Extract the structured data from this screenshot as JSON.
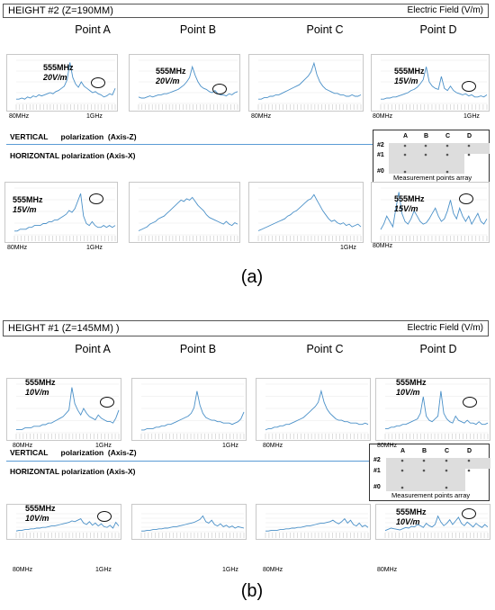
{
  "panels": [
    {
      "caption": "(a)",
      "header_left": "HEIGHT #2   (Z=190MM)",
      "header_right": "Electric Field (V/m)",
      "points": [
        "Point A",
        "Point B",
        "Point C",
        "Point D"
      ],
      "vertical_label": "VERTICAL      polarization  (Axis-Z)",
      "horizontal_label": "HORIZONTAL polarization  (Axis-X)",
      "array": {
        "cols": [
          "A",
          "B",
          "C",
          "D"
        ],
        "rows": [
          "#2",
          "#1",
          "#0"
        ],
        "caption": "Measurement points array"
      },
      "x_start": "80MHz",
      "x_end": "1GHz"
    },
    {
      "caption": "(b)",
      "header_left": "HEIGHT #1   (Z=145MM) )",
      "header_right": "Electric Field (V/m)",
      "points": [
        "Point A",
        "Point B",
        "Point C",
        "Point D"
      ],
      "vertical_label": "VERTICAL      polarization  (Axis-Z)",
      "horizontal_label": "HORIZONTAL polarization  (Axis-X)",
      "array": {
        "cols": [
          "A",
          "B",
          "C",
          "D"
        ],
        "rows": [
          "#2",
          "#1",
          "#0"
        ],
        "caption": "Measurement points array"
      },
      "x_start": "80MHz",
      "x_end": "1GHz"
    }
  ],
  "chart_data": [
    {
      "type": "line",
      "panel": "(a)",
      "polarization": "VERTICAL",
      "point": "Point A",
      "annotation_freq": "555MHz",
      "annotation_value": "20V/m",
      "x_range": [
        "80MHz",
        "1GHz"
      ],
      "ylim": [
        0,
        40
      ],
      "values": [
        4,
        4,
        5,
        4,
        6,
        5,
        7,
        6,
        8,
        7,
        8,
        9,
        10,
        9,
        11,
        12,
        14,
        16,
        22,
        38,
        24,
        18,
        15,
        20,
        16,
        14,
        12,
        10,
        11,
        9,
        8,
        6,
        7,
        9,
        8,
        14
      ]
    },
    {
      "type": "line",
      "panel": "(a)",
      "polarization": "VERTICAL",
      "point": "Point B",
      "annotation_freq": "555MHz",
      "annotation_value": "20V/m",
      "x_range": [
        "80MHz",
        "1GHz"
      ],
      "ylim": [
        0,
        40
      ],
      "values": [
        6,
        5,
        5,
        6,
        7,
        6,
        7,
        8,
        8,
        9,
        9,
        10,
        11,
        12,
        13,
        15,
        17,
        20,
        24,
        34,
        26,
        20,
        16,
        14,
        13,
        11,
        10,
        12,
        9,
        8,
        8,
        7,
        9,
        8,
        10,
        11
      ]
    },
    {
      "type": "line",
      "panel": "(a)",
      "polarization": "VERTICAL",
      "point": "Point C",
      "x_range": [
        "80MHz",
        "1GHz"
      ],
      "ylim": [
        0,
        30
      ],
      "values": [
        3,
        3,
        4,
        4,
        5,
        5,
        6,
        6,
        7,
        8,
        9,
        10,
        11,
        12,
        13,
        15,
        17,
        19,
        22,
        28,
        20,
        15,
        12,
        10,
        9,
        8,
        7,
        7,
        6,
        6,
        5,
        5,
        6,
        5,
        5,
        6
      ]
    },
    {
      "type": "line",
      "panel": "(a)",
      "polarization": "VERTICAL",
      "point": "Point D",
      "annotation_freq": "555MHz",
      "annotation_value": "15V/m",
      "x_range": [
        "80MHz",
        "1GHz"
      ],
      "ylim": [
        0,
        40
      ],
      "values": [
        4,
        4,
        5,
        5,
        6,
        6,
        7,
        8,
        9,
        10,
        12,
        13,
        15,
        18,
        22,
        34,
        20,
        16,
        14,
        13,
        25,
        14,
        12,
        16,
        12,
        10,
        9,
        8,
        9,
        7,
        8,
        6,
        6,
        7,
        6,
        8
      ]
    },
    {
      "type": "line",
      "panel": "(a)",
      "polarization": "HORIZONTAL",
      "point": "Point A",
      "annotation_freq": "555MHz",
      "annotation_value": "15V/m",
      "x_range": [
        "80MHz",
        "1GHz"
      ],
      "ylim": [
        0,
        25
      ],
      "values": [
        2,
        2,
        3,
        3,
        3,
        4,
        4,
        5,
        5,
        5,
        6,
        6,
        7,
        7,
        8,
        8,
        9,
        10,
        11,
        13,
        12,
        14,
        18,
        22,
        10,
        6,
        5,
        7,
        5,
        4,
        4,
        5,
        4,
        5,
        4,
        5
      ]
    },
    {
      "type": "line",
      "panel": "(a)",
      "polarization": "HORIZONTAL",
      "point": "Point B",
      "x_range": [
        "80MHz",
        "1GHz"
      ],
      "ylim": [
        0,
        35
      ],
      "values": [
        3,
        4,
        5,
        6,
        8,
        9,
        10,
        12,
        13,
        14,
        16,
        18,
        20,
        22,
        24,
        26,
        25,
        27,
        26,
        28,
        25,
        22,
        20,
        18,
        15,
        13,
        12,
        11,
        10,
        9,
        8,
        10,
        8,
        7,
        9,
        8
      ]
    },
    {
      "type": "line",
      "panel": "(a)",
      "polarization": "HORIZONTAL",
      "point": "Point C",
      "x_range": [
        "80MHz",
        "1GHz"
      ],
      "ylim": [
        0,
        35
      ],
      "values": [
        3,
        4,
        5,
        6,
        7,
        8,
        9,
        10,
        11,
        12,
        14,
        15,
        17,
        18,
        20,
        22,
        24,
        26,
        27,
        30,
        26,
        22,
        18,
        15,
        12,
        10,
        11,
        9,
        8,
        9,
        7,
        8,
        6,
        7,
        8,
        6
      ]
    },
    {
      "type": "line",
      "panel": "(a)",
      "polarization": "HORIZONTAL",
      "point": "Point D",
      "annotation_freq": "555MHz",
      "annotation_value": "15V/m",
      "x_range": [
        "80MHz",
        "1GHz"
      ],
      "ylim": [
        0,
        35
      ],
      "values": [
        4,
        8,
        14,
        10,
        6,
        20,
        32,
        16,
        10,
        8,
        12,
        18,
        14,
        10,
        8,
        9,
        12,
        16,
        20,
        14,
        10,
        12,
        18,
        26,
        16,
        12,
        20,
        14,
        10,
        14,
        8,
        12,
        16,
        10,
        8,
        12
      ]
    },
    {
      "type": "line",
      "panel": "(b)",
      "polarization": "VERTICAL",
      "point": "Point A",
      "annotation_freq": "555MHz",
      "annotation_value": "10V/m",
      "x_range": [
        "80MHz",
        "1GHz"
      ],
      "ylim": [
        0,
        30
      ],
      "values": [
        2,
        2,
        2,
        3,
        3,
        3,
        4,
        4,
        4,
        5,
        5,
        6,
        6,
        7,
        8,
        9,
        10,
        12,
        14,
        28,
        18,
        14,
        11,
        15,
        12,
        10,
        9,
        8,
        11,
        9,
        8,
        7,
        7,
        6,
        9,
        14
      ]
    },
    {
      "type": "line",
      "panel": "(b)",
      "polarization": "VERTICAL",
      "point": "Point B",
      "x_range": [
        "80MHz",
        "1GHz"
      ],
      "ylim": [
        0,
        35
      ],
      "values": [
        2,
        2,
        3,
        3,
        3,
        4,
        4,
        5,
        5,
        6,
        6,
        7,
        8,
        9,
        10,
        11,
        12,
        14,
        18,
        30,
        20,
        14,
        11,
        10,
        9,
        9,
        8,
        8,
        7,
        7,
        7,
        6,
        7,
        8,
        10,
        15
      ]
    },
    {
      "type": "line",
      "panel": "(b)",
      "polarization": "VERTICAL",
      "point": "Point C",
      "x_range": [
        "80MHz",
        "1GHz"
      ],
      "ylim": [
        0,
        35
      ],
      "values": [
        2,
        3,
        3,
        4,
        4,
        5,
        5,
        6,
        6,
        7,
        8,
        9,
        10,
        11,
        13,
        15,
        17,
        19,
        22,
        30,
        22,
        17,
        14,
        12,
        10,
        9,
        9,
        8,
        8,
        7,
        7,
        7,
        6,
        6,
        7,
        6
      ]
    },
    {
      "type": "line",
      "panel": "(b)",
      "polarization": "VERTICAL",
      "point": "Point D",
      "annotation_freq": "555MHz",
      "annotation_value": "10V/m",
      "x_range": [
        "80MHz",
        "1GHz"
      ],
      "ylim": [
        0,
        35
      ],
      "values": [
        3,
        3,
        4,
        4,
        5,
        5,
        6,
        6,
        7,
        8,
        9,
        10,
        14,
        26,
        12,
        9,
        8,
        10,
        12,
        30,
        14,
        10,
        8,
        7,
        12,
        9,
        8,
        7,
        9,
        7,
        7,
        6,
        8,
        6,
        6,
        7
      ]
    },
    {
      "type": "line",
      "panel": "(b)",
      "polarization": "HORIZONTAL",
      "point": "Point A",
      "annotation_freq": "555MHz",
      "annotation_value": "10V/m",
      "x_range": [
        "80MHz",
        "1GHz"
      ],
      "ylim": [
        0,
        25
      ],
      "values": [
        1,
        2,
        2,
        3,
        3,
        4,
        4,
        5,
        5,
        6,
        6,
        7,
        8,
        8,
        9,
        10,
        11,
        12,
        13,
        15,
        14,
        16,
        18,
        12,
        10,
        14,
        9,
        12,
        8,
        11,
        7,
        6,
        9,
        5,
        13,
        8
      ]
    },
    {
      "type": "line",
      "panel": "(b)",
      "polarization": "HORIZONTAL",
      "point": "Point B",
      "x_range": [
        "80MHz",
        "1GHz"
      ],
      "ylim": [
        0,
        25
      ],
      "values": [
        1,
        1,
        2,
        2,
        3,
        3,
        4,
        4,
        5,
        5,
        6,
        7,
        7,
        8,
        9,
        10,
        11,
        12,
        13,
        15,
        17,
        22,
        14,
        12,
        16,
        10,
        8,
        11,
        7,
        9,
        6,
        8,
        5,
        7,
        6,
        5
      ]
    },
    {
      "type": "line",
      "panel": "(b)",
      "polarization": "HORIZONTAL",
      "point": "Point C",
      "x_range": [
        "80MHz",
        "1GHz"
      ],
      "ylim": [
        0,
        25
      ],
      "values": [
        1,
        1,
        2,
        2,
        2,
        3,
        3,
        4,
        4,
        5,
        5,
        6,
        6,
        7,
        8,
        8,
        9,
        10,
        11,
        12,
        12,
        13,
        14,
        16,
        13,
        11,
        14,
        18,
        12,
        16,
        10,
        8,
        12,
        7,
        9,
        6
      ]
    },
    {
      "type": "line",
      "panel": "(b)",
      "polarization": "HORIZONTAL",
      "point": "Point D",
      "annotation_freq": "555MHz",
      "annotation_value": "10V/m",
      "x_range": [
        "80MHz",
        "1GHz"
      ],
      "ylim": [
        0,
        30
      ],
      "values": [
        2,
        4,
        6,
        5,
        4,
        3,
        5,
        7,
        6,
        9,
        8,
        12,
        10,
        7,
        14,
        10,
        8,
        12,
        26,
        16,
        10,
        14,
        20,
        12,
        18,
        24,
        14,
        10,
        16,
        12,
        8,
        14,
        10,
        7,
        12,
        8
      ]
    }
  ]
}
